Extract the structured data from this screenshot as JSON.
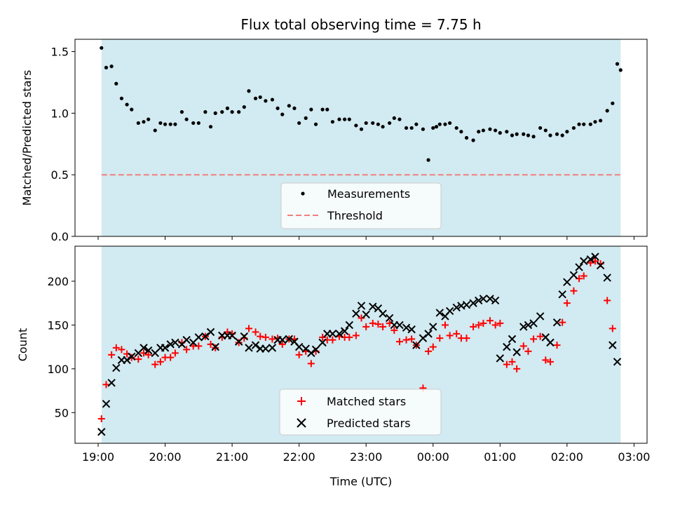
{
  "colors": {
    "background_shade": "#add8e6",
    "measurements": "#000000",
    "threshold": "#f08080",
    "matched": "#ff0000",
    "predicted": "#000000"
  },
  "chart_data": [
    {
      "type": "scatter",
      "title": "Flux total observing time = 7.75 h",
      "xlabel": "",
      "ylabel": "Matched/Predicted stars",
      "ylim": [
        0.0,
        1.6
      ],
      "yticks": [
        "0.0",
        "0.5",
        "1.0",
        "1.5"
      ],
      "shaded_span_hours_since_19": [
        0.05,
        7.8
      ],
      "threshold": 0.5,
      "legend": {
        "position": "bottom-center",
        "entries": [
          "Measurements",
          "Threshold"
        ]
      },
      "series": [
        {
          "name": "Measurements",
          "x_hours_since_19": [
            0.05,
            0.12,
            0.2,
            0.27,
            0.35,
            0.43,
            0.5,
            0.6,
            0.68,
            0.75,
            0.85,
            0.93,
            1.0,
            1.08,
            1.15,
            1.25,
            1.32,
            1.42,
            1.5,
            1.6,
            1.68,
            1.75,
            1.85,
            1.93,
            2.0,
            2.1,
            2.18,
            2.25,
            2.35,
            2.42,
            2.5,
            2.6,
            2.68,
            2.75,
            2.85,
            2.93,
            3.0,
            3.1,
            3.18,
            3.25,
            3.35,
            3.42,
            3.5,
            3.6,
            3.68,
            3.75,
            3.85,
            3.93,
            4.0,
            4.1,
            4.18,
            4.25,
            4.35,
            4.42,
            4.5,
            4.6,
            4.68,
            4.75,
            4.85,
            4.93,
            5.0,
            5.05,
            5.1,
            5.18,
            5.25,
            5.35,
            5.42,
            5.5,
            5.6,
            5.68,
            5.75,
            5.85,
            5.93,
            6.0,
            6.1,
            6.18,
            6.25,
            6.35,
            6.42,
            6.5,
            6.6,
            6.68,
            6.75,
            6.85,
            6.93,
            7.0,
            7.1,
            7.18,
            7.25,
            7.35,
            7.42,
            7.5,
            7.6,
            7.68,
            7.75,
            7.8
          ],
          "y": [
            1.53,
            1.37,
            1.38,
            1.24,
            1.12,
            1.07,
            1.03,
            0.92,
            0.93,
            0.95,
            0.86,
            0.92,
            0.91,
            0.91,
            0.91,
            1.01,
            0.95,
            0.92,
            0.92,
            1.01,
            0.89,
            1.0,
            1.01,
            1.04,
            1.01,
            1.01,
            1.05,
            1.18,
            1.12,
            1.13,
            1.1,
            1.11,
            1.04,
            0.99,
            1.06,
            1.04,
            0.92,
            0.96,
            1.03,
            0.91,
            1.03,
            1.03,
            0.93,
            0.95,
            0.95,
            0.95,
            0.9,
            0.87,
            0.92,
            0.92,
            0.91,
            0.89,
            0.92,
            0.96,
            0.95,
            0.88,
            0.88,
            0.91,
            0.87,
            0.62,
            0.88,
            0.89,
            0.91,
            0.91,
            0.92,
            0.88,
            0.85,
            0.8,
            0.78,
            0.85,
            0.86,
            0.87,
            0.86,
            0.84,
            0.85,
            0.82,
            0.83,
            0.83,
            0.82,
            0.81,
            0.88,
            0.86,
            0.82,
            0.83,
            0.82,
            0.85,
            0.88,
            0.91,
            0.91,
            0.91,
            0.93,
            0.94,
            1.02,
            1.08,
            1.4,
            1.35
          ]
        }
      ]
    },
    {
      "type": "scatter",
      "title": "",
      "xlabel": "Time (UTC)",
      "ylabel": "Count",
      "ylim": [
        15,
        240
      ],
      "yticks": [
        "50",
        "100",
        "150",
        "200"
      ],
      "x_tick_labels": [
        "19:00",
        "20:00",
        "21:00",
        "22:00",
        "23:00",
        "00:00",
        "01:00",
        "02:00",
        "03:00"
      ],
      "legend": {
        "position": "bottom-center",
        "entries": [
          "Matched stars",
          "Predicted stars"
        ]
      },
      "x_hours_since_19": [
        0.05,
        0.12,
        0.2,
        0.27,
        0.35,
        0.43,
        0.5,
        0.6,
        0.68,
        0.75,
        0.85,
        0.93,
        1.0,
        1.08,
        1.15,
        1.25,
        1.32,
        1.42,
        1.5,
        1.6,
        1.68,
        1.75,
        1.85,
        1.93,
        2.0,
        2.1,
        2.18,
        2.25,
        2.35,
        2.42,
        2.5,
        2.6,
        2.68,
        2.75,
        2.85,
        2.93,
        3.0,
        3.1,
        3.18,
        3.25,
        3.35,
        3.42,
        3.5,
        3.6,
        3.68,
        3.75,
        3.85,
        3.93,
        4.0,
        4.1,
        4.18,
        4.25,
        4.35,
        4.42,
        4.5,
        4.6,
        4.68,
        4.75,
        4.85,
        4.93,
        5.0,
        5.1,
        5.18,
        5.25,
        5.35,
        5.42,
        5.5,
        5.6,
        5.68,
        5.75,
        5.85,
        5.93,
        6.0,
        6.1,
        6.18,
        6.25,
        6.35,
        6.42,
        6.5,
        6.6,
        6.68,
        6.75,
        6.85,
        6.93,
        7.0,
        7.1,
        7.18,
        7.25,
        7.35,
        7.42,
        7.5,
        7.6,
        7.68,
        7.75,
        7.8
      ],
      "series": [
        {
          "name": "Matched stars",
          "marker": "plus",
          "values": [
            43,
            82,
            116,
            124,
            122,
            117,
            113,
            111,
            118,
            116,
            105,
            108,
            113,
            113,
            118,
            130,
            122,
            126,
            126,
            137,
            128,
            124,
            136,
            142,
            140,
            130,
            135,
            146,
            142,
            137,
            136,
            134,
            135,
            128,
            134,
            134,
            116,
            120,
            106,
            120,
            136,
            133,
            133,
            137,
            136,
            136,
            138,
            158,
            148,
            152,
            151,
            148,
            152,
            144,
            131,
            133,
            134,
            127,
            78,
            120,
            125,
            135,
            150,
            138,
            140,
            135,
            135,
            148,
            150,
            152,
            155,
            150,
            152,
            105,
            108,
            100,
            126,
            120,
            134,
            137,
            110,
            108,
            127,
            153,
            175,
            189,
            203,
            206,
            221,
            223,
            220,
            178,
            146,
            null,
            null
          ]
        },
        {
          "name": "Predicted stars",
          "marker": "x",
          "values": [
            28,
            60,
            84,
            101,
            110,
            110,
            114,
            118,
            124,
            121,
            118,
            124,
            124,
            128,
            130,
            128,
            133,
            130,
            136,
            137,
            142,
            125,
            138,
            138,
            138,
            131,
            137,
            124,
            127,
            123,
            123,
            124,
            133,
            133,
            134,
            131,
            125,
            123,
            118,
            122,
            130,
            140,
            140,
            140,
            143,
            150,
            163,
            172,
            162,
            171,
            169,
            163,
            158,
            150,
            150,
            147,
            145,
            127,
            135,
            140,
            148,
            164,
            160,
            166,
            170,
            172,
            173,
            175,
            178,
            180,
            180,
            178,
            112,
            125,
            134,
            119,
            148,
            150,
            152,
            160,
            136,
            130,
            153,
            185,
            199,
            207,
            216,
            223,
            225,
            228,
            218,
            204,
            127,
            108,
            null
          ]
        }
      ]
    }
  ]
}
